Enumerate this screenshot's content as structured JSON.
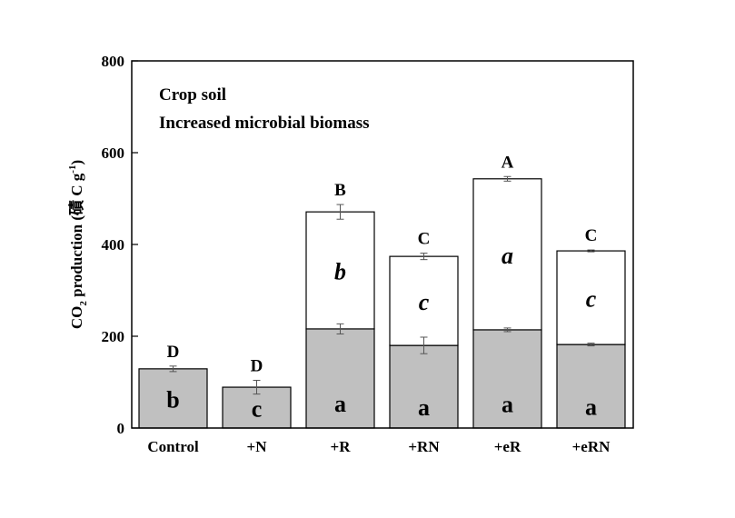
{
  "chart_data": {
    "type": "bar",
    "stacked": true,
    "annotations": [
      "Crop soil",
      "Increased microbial biomass"
    ],
    "ylabel_main": "CO",
    "ylabel_sub": "2",
    "ylabel_rest": " production (磧 C g",
    "ylabel_sup": "-1",
    "ylabel_end": ")",
    "xlabel": "",
    "ylim": [
      0,
      800
    ],
    "yticks": [
      0,
      200,
      400,
      600,
      800
    ],
    "grid": false,
    "categories": [
      "Control",
      "+N",
      "+R",
      "+RN",
      "+eR",
      "+eRN"
    ],
    "series": [
      {
        "color": "#c0c0c0",
        "values": [
          129,
          89,
          216,
          180,
          214,
          182
        ],
        "errors": [
          6,
          15,
          11,
          18,
          4,
          3
        ],
        "letters": [
          "b",
          "c",
          "a",
          "a",
          "a",
          "a"
        ]
      },
      {
        "color": "#ffffff",
        "values": [
          0,
          0,
          255,
          194,
          329,
          204
        ],
        "totals": [
          129,
          89,
          471,
          374,
          543,
          386
        ],
        "errors": [
          0,
          0,
          16,
          7,
          5,
          2
        ],
        "letters": [
          "",
          "",
          "b",
          "c",
          "a",
          "c"
        ]
      }
    ],
    "total_letters": [
      "D",
      "D",
      "B",
      "C",
      "A",
      "C"
    ]
  }
}
